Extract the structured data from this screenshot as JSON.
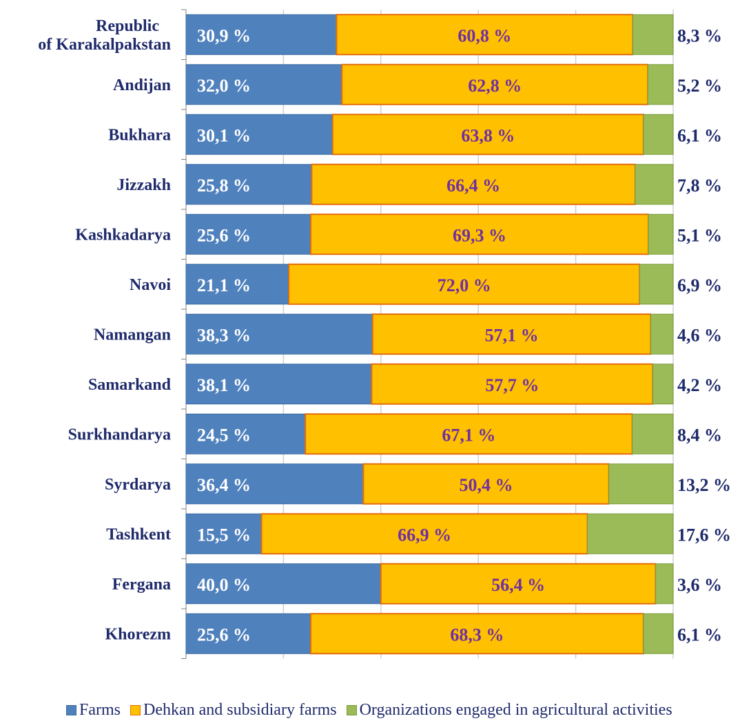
{
  "chart_data": {
    "type": "bar",
    "orientation": "horizontal",
    "stacked": true,
    "unit": "%",
    "categories": [
      "Republic\nof Karakalpakstan",
      "Andijan",
      "Bukhara",
      "Jizzakh",
      "Kashkadarya",
      "Navoi",
      "Namangan",
      "Samarkand",
      "Surkhandarya",
      "Syrdarya",
      "Tashkent",
      "Fergana",
      "Khorezm"
    ],
    "series": [
      {
        "name": "Farms",
        "color": "#4f81bd",
        "label_color": "#ffffff",
        "values": [
          30.9,
          32.0,
          30.1,
          25.8,
          25.6,
          21.1,
          38.3,
          38.1,
          24.5,
          36.4,
          15.5,
          40.0,
          25.6
        ],
        "labels": [
          "30,9 %",
          "32,0 %",
          "30,1 %",
          "25,8 %",
          "25,6 %",
          "21,1 %",
          "38,3 %",
          "38,1 %",
          "24,5 %",
          "36,4 %",
          "15,5 %",
          "40,0 %",
          "25,6 %"
        ]
      },
      {
        "name": "Dehkan and subsidiary farms",
        "color": "#ffc000",
        "label_color": "#7030a0",
        "values": [
          60.8,
          62.8,
          63.8,
          66.4,
          69.3,
          72.0,
          57.1,
          57.7,
          67.1,
          50.4,
          66.9,
          56.4,
          68.3
        ],
        "labels": [
          "60,8 %",
          "62,8 %",
          "63,8 %",
          "66,4 %",
          "69,3 %",
          "72,0 %",
          "57,1 %",
          "57,7 %",
          "67,1 %",
          "50,4 %",
          "66,9 %",
          "56,4 %",
          "68,3 %"
        ]
      },
      {
        "name": "Organizations engaged in agricultural activities",
        "color": "#9bbb59",
        "label_color": "#1f2a6b",
        "values": [
          8.3,
          5.2,
          6.1,
          7.8,
          5.1,
          6.9,
          4.6,
          4.2,
          8.4,
          13.2,
          17.6,
          3.6,
          6.1
        ],
        "labels": [
          "8,3 %",
          "5,2 %",
          "6,1 %",
          "7,8 %",
          "5,1 %",
          "6,9 %",
          "4,6 %",
          "4,2 %",
          "8,4 %",
          "13,2 %",
          "17,6 %",
          "3,6 %",
          "6,1 %"
        ]
      }
    ],
    "xlim": [
      0,
      100
    ],
    "grid": true,
    "legend_position": "bottom"
  }
}
